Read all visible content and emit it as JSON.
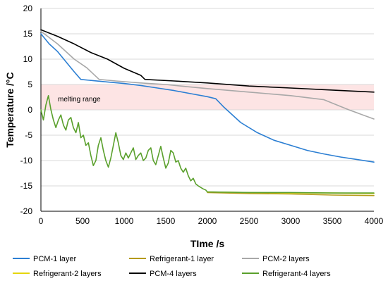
{
  "chart_data": {
    "type": "line",
    "xlabel": "TIme /s",
    "ylabel": "Temperature /°C",
    "xlim": [
      0,
      4000
    ],
    "ylim": [
      -20,
      20
    ],
    "x_ticks": [
      "0",
      "500",
      "1000",
      "1500",
      "2000",
      "2500",
      "3000",
      "3500",
      "4000"
    ],
    "y_ticks": [
      "20",
      "15",
      "10",
      "5",
      "0",
      "-5",
      "-10",
      "-15",
      "-20"
    ],
    "grid": "horizontal",
    "legend_position": "bottom",
    "band": {
      "label": "melting range",
      "y": [
        0,
        5
      ],
      "color": "#fde4e4"
    },
    "series": [
      {
        "name": "PCM-1 layer",
        "color": "#2c7fd3",
        "points": [
          [
            0,
            15
          ],
          [
            100,
            13
          ],
          [
            200,
            11.5
          ],
          [
            300,
            9.5
          ],
          [
            400,
            7.5
          ],
          [
            480,
            6
          ],
          [
            600,
            5.8
          ],
          [
            800,
            5.5
          ],
          [
            1000,
            5.2
          ],
          [
            1200,
            4.8
          ],
          [
            1400,
            4.3
          ],
          [
            1600,
            3.8
          ],
          [
            1800,
            3.2
          ],
          [
            2000,
            2.6
          ],
          [
            2100,
            2.2
          ],
          [
            2200,
            0.5
          ],
          [
            2400,
            -2.5
          ],
          [
            2600,
            -4.5
          ],
          [
            2800,
            -6
          ],
          [
            3000,
            -7
          ],
          [
            3200,
            -8
          ],
          [
            3400,
            -8.7
          ],
          [
            3600,
            -9.3
          ],
          [
            3800,
            -9.8
          ],
          [
            4000,
            -10.3
          ]
        ]
      },
      {
        "name": "Refrigerant-1 layer",
        "color": "#b59a18",
        "points": [
          [
            2000,
            -16.3
          ],
          [
            2500,
            -16.5
          ],
          [
            3000,
            -16.6
          ],
          [
            3500,
            -16.8
          ],
          [
            4000,
            -16.9
          ]
        ]
      },
      {
        "name": "PCM-2 layers",
        "color": "#a8a8a8",
        "points": [
          [
            0,
            15.5
          ],
          [
            200,
            13
          ],
          [
            400,
            10
          ],
          [
            550,
            8.3
          ],
          [
            700,
            6
          ],
          [
            900,
            5.7
          ],
          [
            1200,
            5.3
          ],
          [
            1500,
            5
          ],
          [
            1800,
            4.5
          ],
          [
            2000,
            4.2
          ],
          [
            2500,
            3.5
          ],
          [
            3000,
            2.8
          ],
          [
            3400,
            2
          ],
          [
            3700,
            0
          ],
          [
            4000,
            -1.8
          ]
        ]
      },
      {
        "name": "Refrigerant-2 layers",
        "color": "#e5d60d",
        "points": [
          [
            2000,
            -16.2
          ],
          [
            2500,
            -16.3
          ],
          [
            3000,
            -16.4
          ],
          [
            3500,
            -16.4
          ],
          [
            4000,
            -16.5
          ]
        ]
      },
      {
        "name": "PCM-4 layers",
        "color": "#000000",
        "points": [
          [
            0,
            15.8
          ],
          [
            200,
            14.5
          ],
          [
            400,
            13
          ],
          [
            600,
            11.3
          ],
          [
            800,
            10
          ],
          [
            1000,
            8.2
          ],
          [
            1200,
            6.8
          ],
          [
            1250,
            6
          ],
          [
            1600,
            5.7
          ],
          [
            2000,
            5.3
          ],
          [
            2500,
            4.7
          ],
          [
            3000,
            4.3
          ],
          [
            3500,
            3.9
          ],
          [
            4000,
            3.5
          ]
        ]
      },
      {
        "name": "Refrigerant-4 layers",
        "color": "#5aa02c",
        "points": [
          [
            0,
            0
          ],
          [
            30,
            -2
          ],
          [
            60,
            1
          ],
          [
            90,
            2.8
          ],
          [
            120,
            0
          ],
          [
            150,
            -2
          ],
          [
            180,
            -3.5
          ],
          [
            210,
            -2
          ],
          [
            240,
            -1
          ],
          [
            270,
            -3
          ],
          [
            300,
            -4
          ],
          [
            330,
            -2
          ],
          [
            360,
            -1.5
          ],
          [
            390,
            -3.5
          ],
          [
            420,
            -4.5
          ],
          [
            450,
            -2.5
          ],
          [
            480,
            -5.5
          ],
          [
            510,
            -5
          ],
          [
            540,
            -7
          ],
          [
            570,
            -6.5
          ],
          [
            600,
            -9
          ],
          [
            630,
            -11
          ],
          [
            660,
            -10
          ],
          [
            690,
            -7
          ],
          [
            720,
            -5.5
          ],
          [
            750,
            -8
          ],
          [
            780,
            -10
          ],
          [
            810,
            -11.3
          ],
          [
            840,
            -9.5
          ],
          [
            870,
            -7
          ],
          [
            900,
            -4.5
          ],
          [
            930,
            -6.5
          ],
          [
            960,
            -9
          ],
          [
            990,
            -9.8
          ],
          [
            1020,
            -8.5
          ],
          [
            1050,
            -9.5
          ],
          [
            1080,
            -8.5
          ],
          [
            1110,
            -7.5
          ],
          [
            1140,
            -9.8
          ],
          [
            1170,
            -9
          ],
          [
            1200,
            -8.5
          ],
          [
            1230,
            -10
          ],
          [
            1260,
            -9.5
          ],
          [
            1290,
            -8
          ],
          [
            1320,
            -7.5
          ],
          [
            1350,
            -10
          ],
          [
            1380,
            -10.8
          ],
          [
            1410,
            -9
          ],
          [
            1440,
            -7.2
          ],
          [
            1470,
            -9.5
          ],
          [
            1500,
            -11.5
          ],
          [
            1530,
            -10.5
          ],
          [
            1560,
            -8
          ],
          [
            1590,
            -8.5
          ],
          [
            1620,
            -10.3
          ],
          [
            1650,
            -10
          ],
          [
            1680,
            -11.5
          ],
          [
            1710,
            -12.3
          ],
          [
            1740,
            -11.5
          ],
          [
            1770,
            -13
          ],
          [
            1800,
            -14
          ],
          [
            1830,
            -13.5
          ],
          [
            1860,
            -14.6
          ],
          [
            1890,
            -15
          ],
          [
            1920,
            -15.3
          ],
          [
            1950,
            -15.6
          ],
          [
            1980,
            -15.8
          ],
          [
            2000,
            -16.2
          ],
          [
            2500,
            -16.3
          ],
          [
            3000,
            -16.3
          ],
          [
            3500,
            -16.4
          ],
          [
            4000,
            -16.4
          ]
        ]
      }
    ]
  }
}
